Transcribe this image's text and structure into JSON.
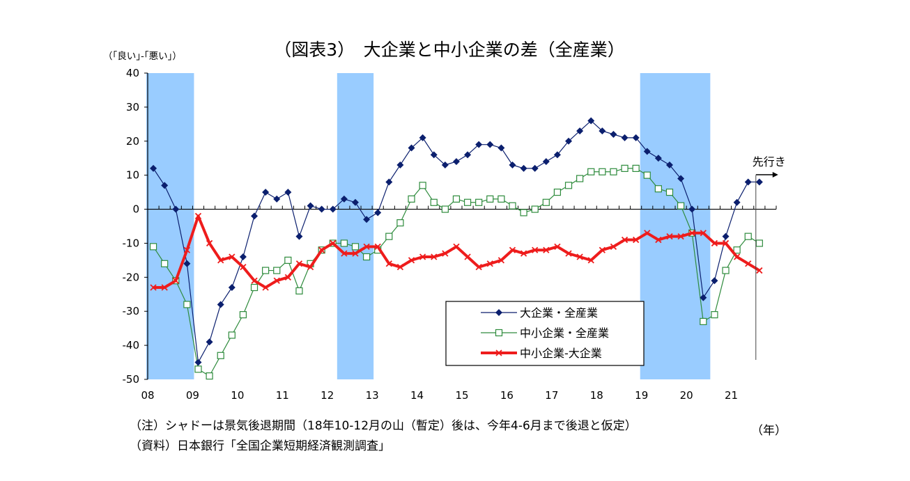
{
  "chart_data": {
    "type": "line",
    "title": "（図表3）　大企業と中小企業の差（全産業）",
    "ylabel": "（｢良い｣-｢悪い｣）",
    "xlabel": "（年）",
    "ylim": [
      -50,
      40
    ],
    "yticks": [
      40,
      30,
      20,
      10,
      0,
      -10,
      -20,
      -30,
      -40,
      -50
    ],
    "year_labels": [
      "08",
      "09",
      "10",
      "11",
      "12",
      "13",
      "14",
      "15",
      "16",
      "17",
      "18",
      "19",
      "20",
      "21"
    ],
    "quarters": 56,
    "recession_shading": [
      [
        0,
        4
      ],
      [
        17,
        20
      ],
      [
        44,
        50
      ]
    ],
    "forecast_index": 54,
    "forecast_label": "先行き",
    "legend": {
      "position": "lower-center"
    },
    "series": [
      {
        "name": "大企業・全産業",
        "color": "#0b1f6e",
        "marker": "diamond",
        "values": [
          12,
          7,
          0,
          -16,
          -45,
          -39,
          -28,
          -23,
          -14,
          -2,
          5,
          3,
          5,
          -8,
          1,
          0,
          0,
          3,
          2,
          -3,
          -1,
          8,
          13,
          18,
          21,
          16,
          13,
          14,
          16,
          19,
          19,
          18,
          13,
          12,
          12,
          14,
          16,
          20,
          23,
          26,
          23,
          22,
          21,
          21,
          17,
          15,
          13,
          9,
          0,
          -26,
          -21,
          -8,
          2,
          8,
          8
        ]
      },
      {
        "name": "中小企業・全産業",
        "color": "#2e8b3c",
        "marker": "open-square",
        "values": [
          -11,
          -16,
          -21,
          -28,
          -47,
          -49,
          -43,
          -37,
          -31,
          -23,
          -18,
          -18,
          -15,
          -24,
          -16,
          -12,
          -10,
          -10,
          -11,
          -14,
          -12,
          -8,
          -4,
          3,
          7,
          2,
          0,
          3,
          2,
          2,
          3,
          3,
          1,
          -1,
          0,
          2,
          5,
          7,
          9,
          11,
          11,
          11,
          12,
          12,
          10,
          6,
          5,
          1,
          -7,
          -33,
          -31,
          -18,
          -12,
          -8,
          -10
        ]
      },
      {
        "name": "中小企業-大企業",
        "color": "#ee1c1c",
        "marker": "x",
        "values": [
          -23,
          -23,
          -21,
          -12,
          -2,
          -10,
          -15,
          -14,
          -17,
          -21,
          -23,
          -21,
          -20,
          -16,
          -17,
          -12,
          -10,
          -13,
          -13,
          -11,
          -11,
          -16,
          -17,
          -15,
          -14,
          -14,
          -13,
          -11,
          -14,
          -17,
          -16,
          -15,
          -12,
          -13,
          -12,
          -12,
          -11,
          -13,
          -14,
          -15,
          -12,
          -11,
          -9,
          -9,
          -7,
          -9,
          -8,
          -8,
          -7,
          -7,
          -10,
          -10,
          -14,
          -16,
          -18
        ]
      }
    ]
  },
  "notes": {
    "line1": "（注）シャドーは景気後退期間（18年10-12月の山（暫定）後は、今年4-6月まで後退と仮定）",
    "line2": "（資料）日本銀行「全国企業短期経済観測調査」"
  }
}
